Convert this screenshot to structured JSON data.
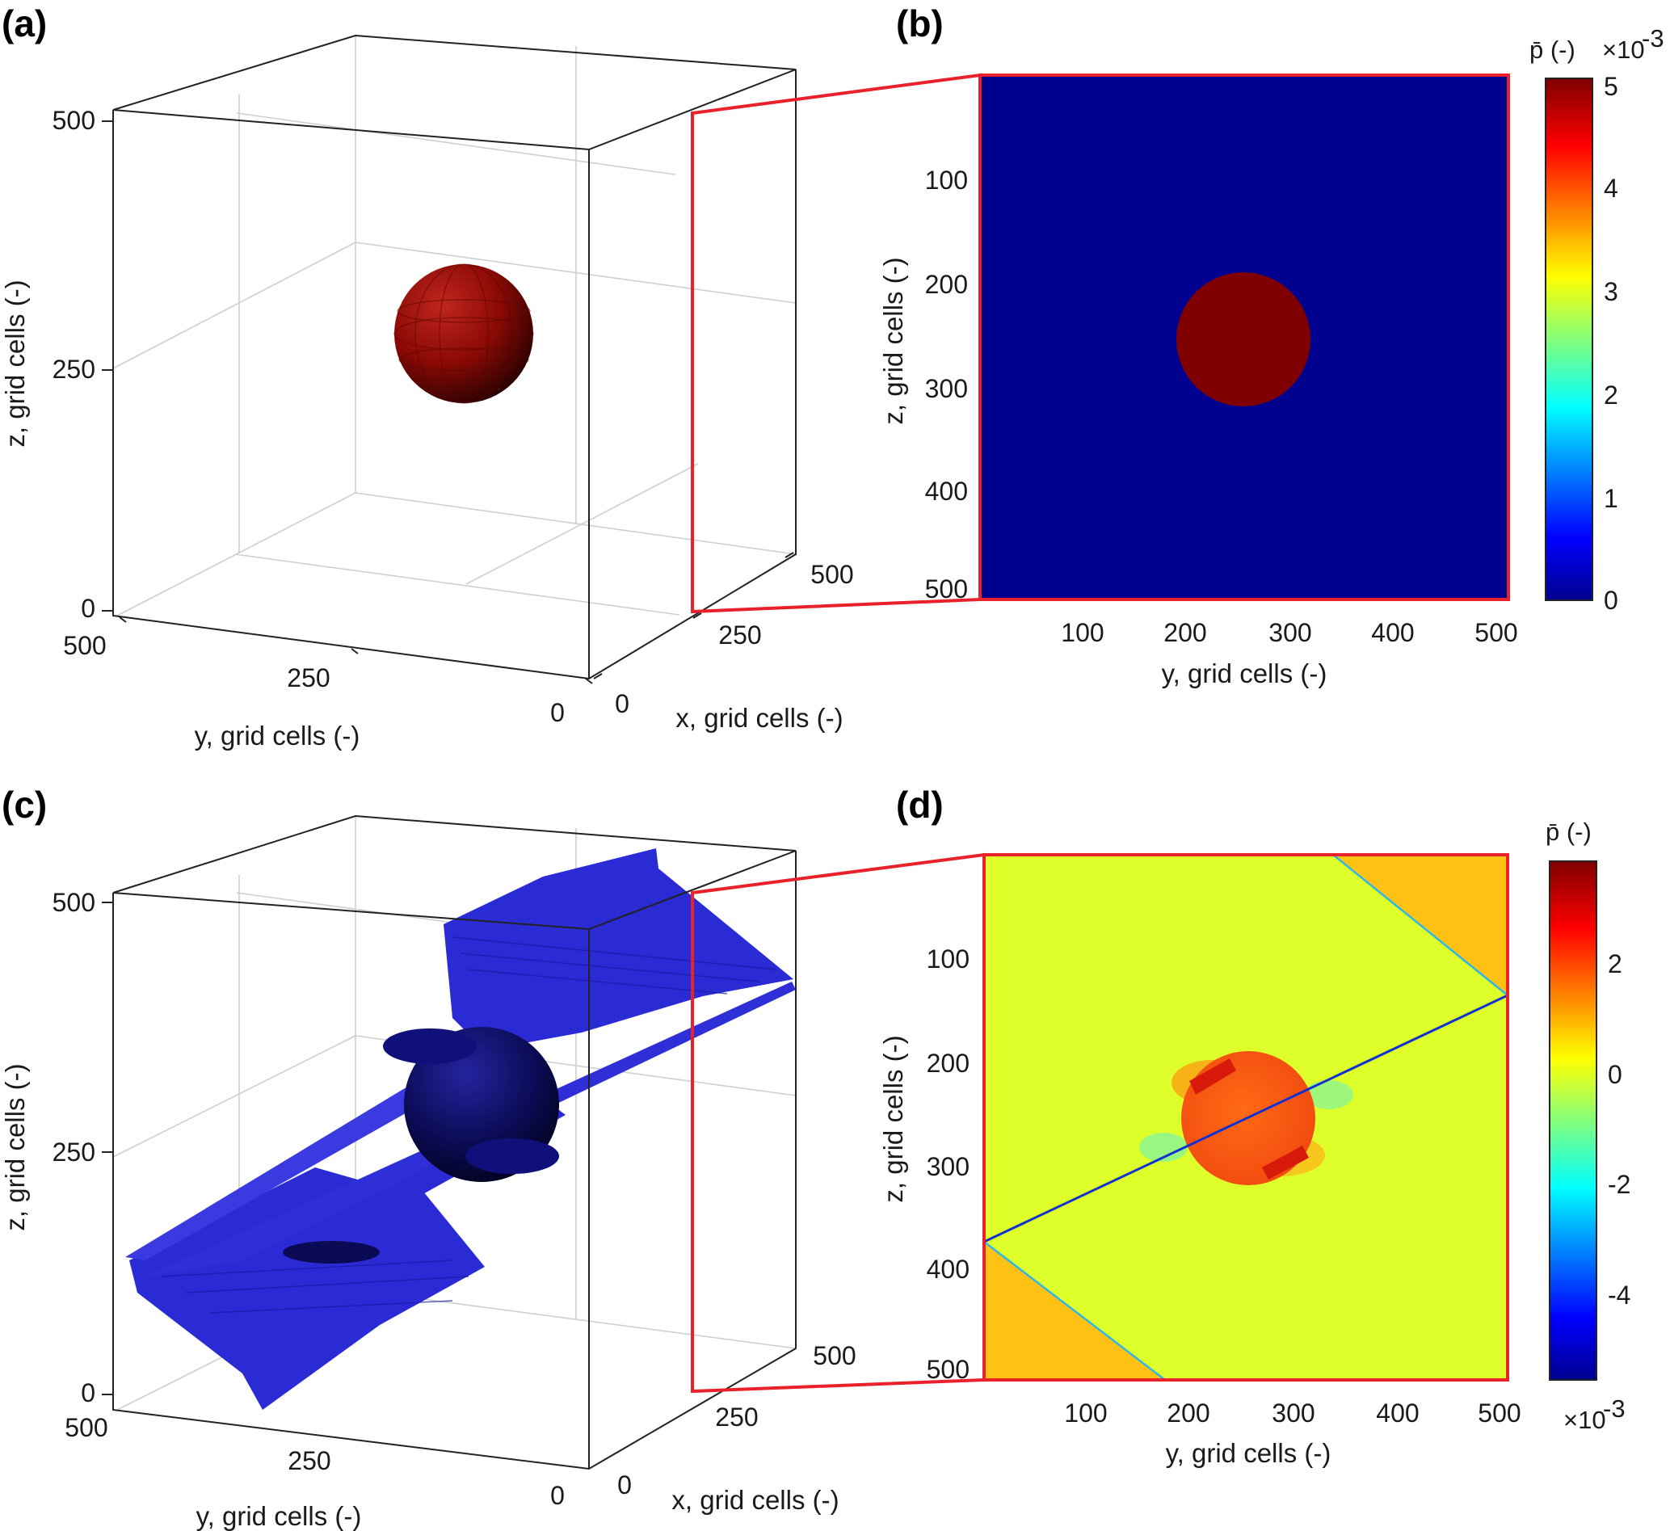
{
  "panels": {
    "a": {
      "label": "(a)",
      "z_ticks": [
        "500",
        "250",
        "0"
      ],
      "y_ticks": [
        "500",
        "250",
        "0"
      ],
      "x_ticks": [
        "0",
        "250",
        "500"
      ],
      "xlabel": "x, grid cells (-)",
      "ylabel": "y, grid cells (-)",
      "zlabel": "z, grid cells (-)"
    },
    "b": {
      "label": "(b)",
      "y_ticks": [
        "100",
        "200",
        "300",
        "400",
        "500"
      ],
      "z_ticks": [
        "100",
        "200",
        "300",
        "400",
        "500"
      ],
      "xlabel": "y, grid cells (-)",
      "ylabel": "z, grid cells (-)",
      "colorbar": {
        "title": "p̄ (-)",
        "exponent_base": "×10",
        "exponent_power": "-3",
        "ticks": [
          "5",
          "4",
          "3",
          "2",
          "1",
          "0"
        ]
      }
    },
    "c": {
      "label": "(c)",
      "z_ticks": [
        "500",
        "250",
        "0"
      ],
      "y_ticks": [
        "500",
        "250",
        "0"
      ],
      "x_ticks": [
        "0",
        "250",
        "500"
      ],
      "xlabel": "x, grid cells (-)",
      "ylabel": "y, grid cells (-)",
      "zlabel": "z, grid cells (-)"
    },
    "d": {
      "label": "(d)",
      "y_ticks": [
        "100",
        "200",
        "300",
        "400",
        "500"
      ],
      "z_ticks": [
        "100",
        "200",
        "300",
        "400",
        "500"
      ],
      "xlabel": "y, grid cells (-)",
      "ylabel": "z, grid cells (-)",
      "colorbar": {
        "title": "p̄ (-)",
        "exponent_base": "×10",
        "exponent_power": "-3",
        "ticks": [
          "2",
          "0",
          "-2",
          "-4"
        ]
      }
    }
  },
  "colors": {
    "sphere_red": "#8b0a06",
    "field_blue": "#00008f",
    "surface_blue": "#2b2bd6",
    "highlight_red": "#e8212a",
    "background_yellow": "#dfff2a"
  },
  "chart_data": [
    {
      "type": "heatmap",
      "panel": "b",
      "xlabel": "y, grid cells (-)",
      "ylabel": "z, grid cells (-)",
      "xlim": [
        1,
        512
      ],
      "ylim": [
        512,
        1
      ],
      "colorbar_range": [
        0,
        5
      ],
      "colorbar_scale": "×10^-3",
      "features": [
        {
          "shape": "background",
          "value": 0
        },
        {
          "shape": "disk",
          "center_y": 256,
          "center_z": 256,
          "radius": 64,
          "value": 5
        }
      ]
    },
    {
      "type": "heatmap",
      "panel": "d",
      "xlabel": "y, grid cells (-)",
      "ylabel": "z, grid cells (-)",
      "xlim": [
        1,
        512
      ],
      "ylim": [
        512,
        1
      ],
      "colorbar_range": [
        -5.5,
        3.9
      ],
      "colorbar_scale": "×10^-3",
      "features": [
        {
          "shape": "background",
          "value": 0.3
        },
        {
          "shape": "disk",
          "center_y": 256,
          "center_z": 256,
          "radius": 64,
          "value": 2.2
        },
        {
          "shape": "fracture_line",
          "from": [
            0,
            370
          ],
          "to": [
            512,
            140
          ],
          "value": -5
        }
      ]
    }
  ]
}
